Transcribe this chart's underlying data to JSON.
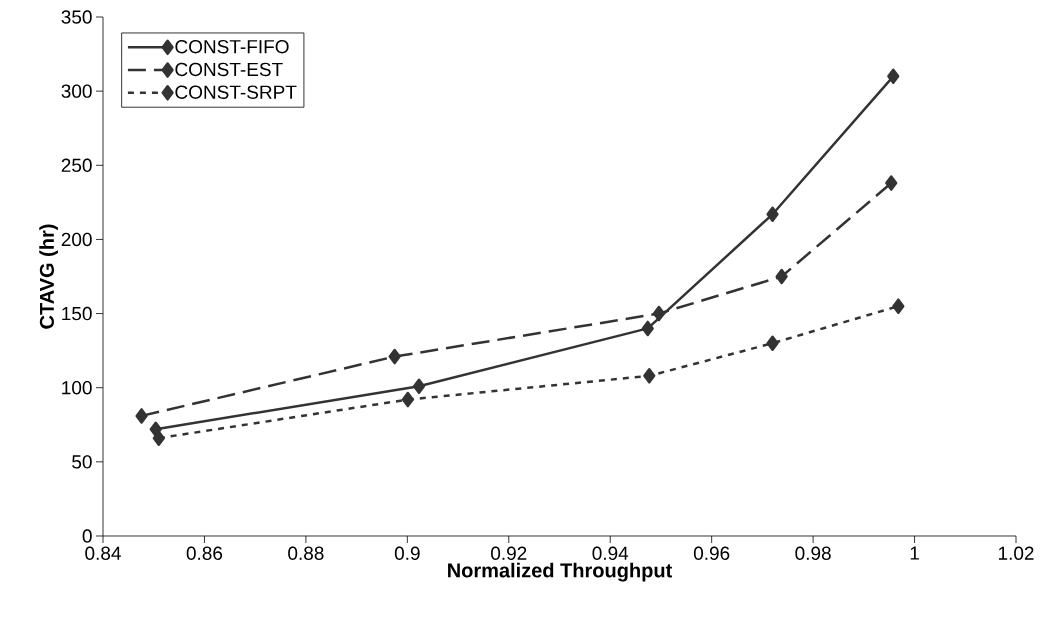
{
  "chart_data": {
    "type": "line",
    "xlabel": "Normalized Throughput",
    "ylabel": "CTAVG (hr)",
    "xlim": [
      0.84,
      1.02
    ],
    "ylim": [
      0,
      350
    ],
    "xticks": [
      0.84,
      0.86,
      0.88,
      0.9,
      0.92,
      0.94,
      0.96,
      0.98,
      1,
      1.02
    ],
    "yticks": [
      0,
      50,
      100,
      150,
      200,
      250,
      300,
      350
    ],
    "legend": "top left",
    "marker": "diamond",
    "grid": false,
    "series": [
      {
        "name": "CONST-FIFO",
        "color": "#333333",
        "line_style": "solid",
        "x": [
          0.8504,
          0.9023,
          0.9474,
          0.972,
          0.9958
        ],
        "values": [
          72,
          101,
          140,
          217,
          310
        ]
      },
      {
        "name": "CONST-EST",
        "color": "#333333",
        "line_style": "dashed",
        "x": [
          0.8476,
          0.8975,
          0.9496,
          0.9738,
          0.9954
        ],
        "values": [
          81,
          121,
          150,
          175,
          238
        ]
      },
      {
        "name": "CONST-SRPT",
        "color": "#333333",
        "line_style": "dotted",
        "x": [
          0.851,
          0.9001,
          0.9477,
          0.972,
          0.9968
        ],
        "values": [
          66,
          92,
          108,
          130,
          155
        ]
      }
    ]
  }
}
